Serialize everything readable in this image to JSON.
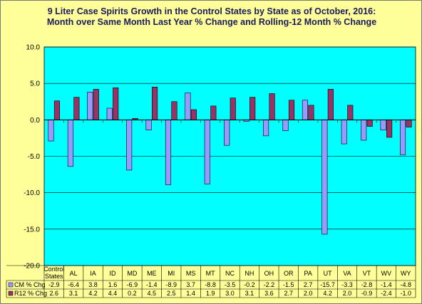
{
  "chart_data": {
    "type": "bar",
    "title": "9 Liter Case Spirits Growth in the Control States by State as of October, 2016:",
    "subtitle": "Month over Same Month Last Year % Change and Rolling-12 Month % Change",
    "categories": [
      "Control States",
      "AL",
      "IA",
      "ID",
      "MD",
      "ME",
      "MI",
      "MS",
      "MT",
      "NC",
      "NH",
      "OH",
      "OR",
      "PA",
      "UT",
      "VA",
      "VT",
      "WV",
      "WY"
    ],
    "series": [
      {
        "name": "CM % Chg",
        "color": "#9999ff",
        "values": [
          -2.9,
          -6.4,
          3.8,
          1.6,
          -6.9,
          -1.4,
          -8.9,
          3.7,
          -8.8,
          -3.5,
          -0.2,
          -2.2,
          -1.5,
          2.7,
          -15.7,
          -3.3,
          -2.8,
          -1.4,
          -4.8
        ]
      },
      {
        "name": "R12 % Chg",
        "color": "#993366",
        "values": [
          2.6,
          3.1,
          4.2,
          4.4,
          0.2,
          4.5,
          2.5,
          1.4,
          1.9,
          3.0,
          3.1,
          3.6,
          2.7,
          2.0,
          4.2,
          2.0,
          -0.9,
          -2.4,
          -1.0
        ]
      }
    ],
    "ylim": [
      -20.0,
      10.0
    ],
    "yticks": [
      "10.0",
      "5.0",
      "0.0",
      "-5.0",
      "-10.0",
      "-15.0",
      "-20.0"
    ],
    "grid": true,
    "legend": "data table"
  }
}
